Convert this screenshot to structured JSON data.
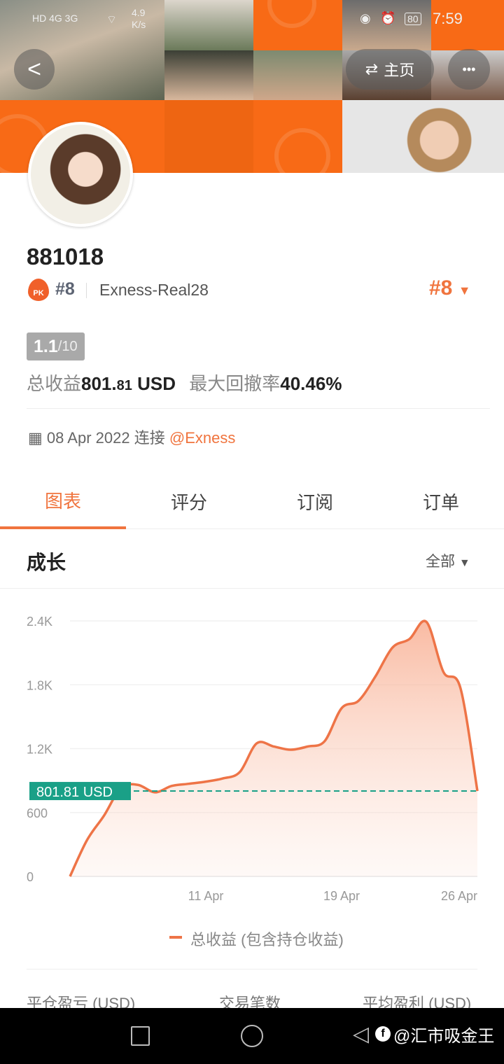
{
  "status_bar": {
    "network": "HD 4G 3G",
    "speed": "4.9\nK/s",
    "battery": "80",
    "time": "7:59"
  },
  "header": {
    "back_label": "<",
    "home_label": "主页",
    "more_label": "•••"
  },
  "profile": {
    "name": "881018",
    "pk_badge": "PK",
    "rank": "#8",
    "server": "Exness-Real28",
    "rank_right": "#8",
    "score": "1.1",
    "score_max": "/10",
    "total_profit_label": "总收益",
    "total_profit_int": "801.",
    "total_profit_dec": "81",
    "total_profit_unit": "USD",
    "max_drawdown_label": "最大回撤率",
    "max_drawdown": "40.46%",
    "connected_date": "08 Apr 2022",
    "connected_label": "连接",
    "broker": "@Exness"
  },
  "tabs": [
    {
      "label": "图表",
      "active": true
    },
    {
      "label": "评分"
    },
    {
      "label": "订阅"
    },
    {
      "label": "订单"
    }
  ],
  "section": {
    "title": "成长",
    "filter": "全部"
  },
  "chart_data": {
    "type": "area",
    "x": [
      "03 Apr",
      "04 Apr",
      "05 Apr",
      "06 Apr",
      "07 Apr",
      "08 Apr",
      "09 Apr",
      "10 Apr",
      "11 Apr",
      "12 Apr",
      "13 Apr",
      "14 Apr",
      "15 Apr",
      "16 Apr",
      "17 Apr",
      "18 Apr",
      "19 Apr",
      "20 Apr",
      "21 Apr",
      "22 Apr",
      "23 Apr",
      "24 Apr",
      "25 Apr",
      "26 Apr",
      "27 Apr"
    ],
    "values": [
      0,
      340,
      570,
      830,
      860,
      790,
      850,
      870,
      890,
      920,
      980,
      1250,
      1220,
      1190,
      1220,
      1270,
      1580,
      1650,
      1880,
      2150,
      2230,
      2390,
      1920,
      1770,
      801.81
    ],
    "x_ticks": [
      "11 Apr",
      "19 Apr",
      "26 Apr"
    ],
    "y_ticks": [
      "0",
      "600",
      "1.2K",
      "1.8K",
      "2.4K"
    ],
    "ylim": [
      0,
      2400
    ],
    "grid": true,
    "current_value_label": "801.81 USD",
    "current_value": 801.81,
    "legend": "总收益 (包含持仓收益)",
    "legend_placement": "bottom",
    "line_color": "#ee7447",
    "marker_color": "#1aa087"
  },
  "stats_headers": [
    "平仓盈亏 (USD)",
    "交易笔数",
    "平均盈利 (USD)"
  ],
  "system_nav": {
    "watermark": "@汇市吸金王"
  }
}
